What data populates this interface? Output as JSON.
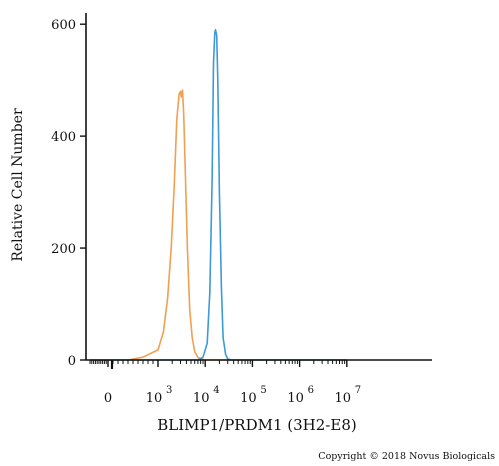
{
  "chart_data": {
    "type": "line",
    "title": "",
    "xlabel": "BLIMP1/PRDM1 (3H2-E8)",
    "ylabel": "Relative Cell Number",
    "x_scale": "biexponential",
    "xlim": [
      -1000,
      10000000
    ],
    "ylim": [
      0,
      620
    ],
    "x_ticks": [
      {
        "value": 0,
        "base": "0",
        "exp": ""
      },
      {
        "value": 1000,
        "base": "10",
        "exp": "3"
      },
      {
        "value": 10000,
        "base": "10",
        "exp": "4"
      },
      {
        "value": 100000,
        "base": "10",
        "exp": "5"
      },
      {
        "value": 1000000,
        "base": "10",
        "exp": "6"
      },
      {
        "value": 10000000,
        "base": "10",
        "exp": "7"
      }
    ],
    "y_ticks": [
      {
        "value": 0,
        "label": "0"
      },
      {
        "value": 200,
        "label": "200"
      },
      {
        "value": 400,
        "label": "400"
      },
      {
        "value": 600,
        "label": "600"
      }
    ],
    "series": [
      {
        "color": "#f0a050",
        "x": [
          400,
          700,
          1000,
          1300,
          1600,
          1900,
          2200,
          2500,
          2800,
          3000,
          3100,
          3300,
          3500,
          3800,
          4200,
          4700,
          5300,
          6000,
          7000,
          8000,
          10000
        ],
        "y": [
          0,
          5,
          18,
          50,
          110,
          200,
          310,
          430,
          475,
          480,
          470,
          482,
          440,
          330,
          200,
          90,
          40,
          15,
          5,
          2,
          0
        ]
      },
      {
        "color": "#3d9ad6",
        "x": [
          7000,
          9000,
          11000,
          12500,
          14000,
          15000,
          16000,
          16500,
          17500,
          18500,
          20000,
          22000,
          24000,
          27000,
          30000,
          35000
        ],
        "y": [
          0,
          5,
          30,
          120,
          320,
          530,
          585,
          590,
          580,
          500,
          300,
          130,
          40,
          10,
          2,
          0
        ]
      }
    ]
  },
  "copyright": "Copyright © 2018 Novus Biologicals"
}
